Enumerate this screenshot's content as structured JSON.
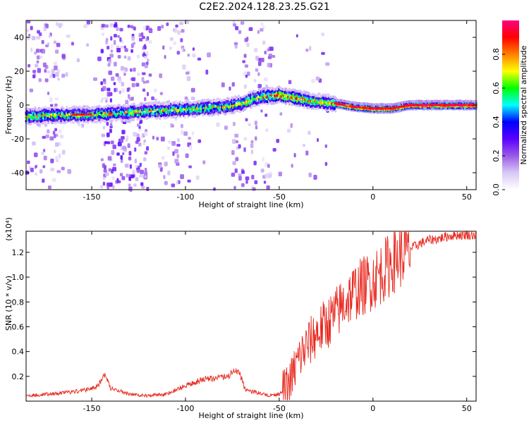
{
  "title": "C2E2.2024.128.23.25.G21",
  "chart_data": [
    {
      "type": "heatmap",
      "xlabel": "Height of straight line (km)",
      "ylabel": "Frequency (Hz)",
      "xlim": [
        -185,
        55
      ],
      "ylim": [
        -50,
        50
      ],
      "xticks": [
        -150,
        -100,
        -50,
        0,
        50
      ],
      "yticks": [
        -40,
        -20,
        0,
        20,
        40
      ],
      "colorbar": {
        "label": "Normalized spectral amplitude",
        "range": [
          0,
          1
        ],
        "ticks": [
          0.0,
          0.2,
          0.4,
          0.6,
          0.8
        ],
        "colors": [
          "#ffffff",
          "#d8c8f5",
          "#9a5ae6",
          "#5a00ff",
          "#0000ff",
          "#00ffff",
          "#00ff00",
          "#ffff00",
          "#ff8000",
          "#ff0000",
          "#ff0080"
        ]
      },
      "ridge": {
        "x": [
          -185,
          -170,
          -150,
          -140,
          -120,
          -100,
          -80,
          -70,
          -60,
          -50,
          -40,
          -30,
          -20,
          -10,
          0,
          10,
          20,
          30,
          55
        ],
        "y": [
          -6.5,
          -6,
          -5.5,
          -5,
          -3.5,
          -2.5,
          -1,
          1,
          5,
          6,
          4,
          2,
          1,
          -1,
          -2,
          -2,
          0,
          0,
          0
        ]
      }
    },
    {
      "type": "line",
      "xlabel": "Height of straight line (km)",
      "ylabel": "SNR (10 * v/v)",
      "multiplier": "(x10⁴)",
      "xlim": [
        -185,
        55
      ],
      "ylim": [
        0,
        1.37
      ],
      "xticks": [
        -150,
        -100,
        -50,
        0,
        50
      ],
      "yticks": [
        0.2,
        0.4,
        0.6,
        0.8,
        1.0,
        1.2
      ],
      "color": "#e8281e",
      "x": [
        -185,
        -175,
        -165,
        -155,
        -147,
        -143,
        -140,
        -130,
        -120,
        -110,
        -100,
        -90,
        -80,
        -75,
        -72,
        -68,
        -60,
        -55,
        -50,
        -45,
        -40,
        -35,
        -30,
        -25,
        -20,
        -15,
        -10,
        -5,
        0,
        5,
        10,
        15,
        20,
        25,
        30,
        35,
        40,
        45,
        50,
        55
      ],
      "y": [
        0.04,
        0.05,
        0.06,
        0.08,
        0.11,
        0.2,
        0.1,
        0.05,
        0.04,
        0.05,
        0.12,
        0.17,
        0.18,
        0.21,
        0.25,
        0.08,
        0.06,
        0.04,
        0.05,
        0.12,
        0.33,
        0.45,
        0.55,
        0.62,
        0.7,
        0.8,
        0.88,
        0.93,
        0.98,
        1.04,
        1.12,
        1.18,
        1.23,
        1.27,
        1.3,
        1.31,
        1.33,
        1.34,
        1.34,
        1.34
      ]
    }
  ]
}
